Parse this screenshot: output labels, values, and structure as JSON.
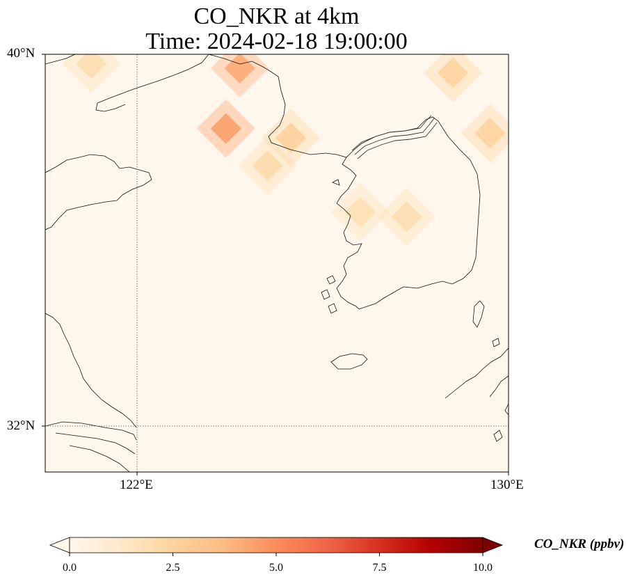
{
  "title": {
    "line1": "CO_NKR at 4km",
    "line2": "Time: 2024-02-18 19:00:00"
  },
  "map": {
    "lat_ticks": [
      "40°N",
      "32°N"
    ],
    "lon_ticks": [
      "122°E",
      "130°E"
    ],
    "extent": {
      "lon_min": 120,
      "lon_max": 130,
      "lat_min": 31,
      "lat_max": 40
    },
    "gridlines": {
      "lons": [
        122
      ],
      "lats": [
        32
      ],
      "style": "dotted"
    },
    "colormap": "OrRd",
    "hotspots": [
      {
        "lon": 124.2,
        "lat": 39.7,
        "value": 4.3,
        "note": ""
      },
      {
        "lon": 123.9,
        "lat": 38.4,
        "value": 4.6,
        "note": ""
      },
      {
        "lon": 125.3,
        "lat": 38.2,
        "value": 2.7,
        "note": ""
      },
      {
        "lon": 124.8,
        "lat": 37.6,
        "value": 2.2,
        "note": ""
      },
      {
        "lon": 128.8,
        "lat": 39.6,
        "value": 2.6,
        "note": ""
      },
      {
        "lon": 129.6,
        "lat": 38.3,
        "value": 2.6,
        "note": ""
      },
      {
        "lon": 127.8,
        "lat": 36.5,
        "value": 2.0,
        "note": ""
      },
      {
        "lon": 126.8,
        "lat": 36.6,
        "value": 1.9,
        "note": ""
      },
      {
        "lon": 121.0,
        "lat": 39.8,
        "value": 2.0,
        "note": ""
      }
    ]
  },
  "colorbar": {
    "label": "CO_NKR (ppbv)",
    "min": 0,
    "max": 10,
    "ticks": [
      "0.0",
      "2.5",
      "5.0",
      "7.5",
      "10.0"
    ],
    "extend": "both",
    "colors": [
      "#fff7ec",
      "#fee8c8",
      "#fdd49e",
      "#fdbb84",
      "#fc8d59",
      "#ef6548",
      "#d7301f",
      "#b30000",
      "#7f0000"
    ]
  }
}
